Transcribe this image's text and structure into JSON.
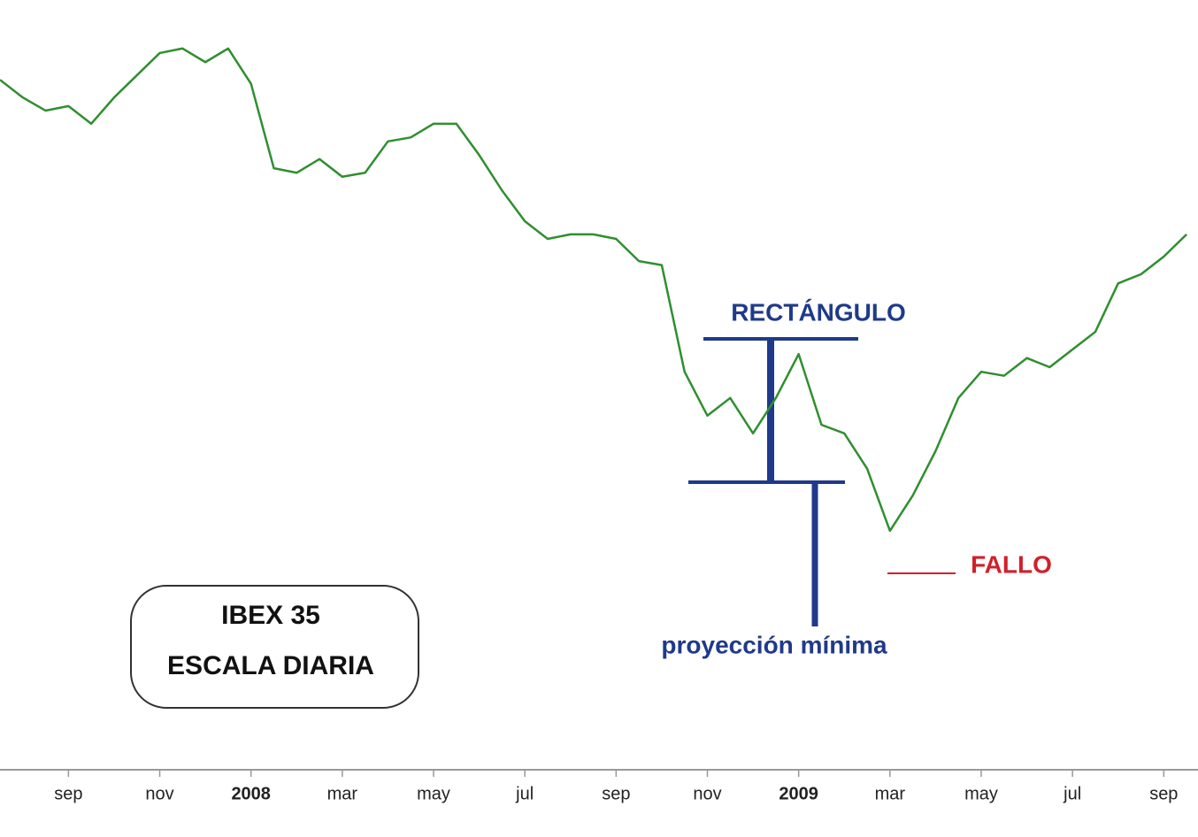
{
  "chart_data": {
    "type": "line",
    "series": [
      {
        "name": "IBEX 35",
        "color": "#2f8f2f",
        "values": [
          15400,
          15090,
          14860,
          14940,
          14630,
          15090,
          15480,
          15870,
          15950,
          15710,
          15950,
          15330,
          13850,
          13770,
          14010,
          13700,
          13770,
          14320,
          14390,
          14630,
          14630,
          14080,
          13460,
          12920,
          12610,
          12690,
          12690,
          12610,
          12220,
          12150,
          10280,
          9510,
          9820,
          9200,
          9820,
          10590,
          9350,
          9200,
          8580,
          7490,
          8110,
          8890,
          9820,
          10280,
          10210,
          10520,
          10360,
          10670,
          10980,
          11830,
          11990,
          12300,
          12690
        ]
      }
    ],
    "xlim": [
      0,
      52.5
    ],
    "ylim": [
      3300,
      16800
    ],
    "xticks": [
      {
        "value": 3,
        "label": "sep"
      },
      {
        "value": 7,
        "label": "nov"
      },
      {
        "value": 11,
        "label": "2008"
      },
      {
        "value": 15,
        "label": "mar"
      },
      {
        "value": 19,
        "label": "may"
      },
      {
        "value": 23,
        "label": "jul"
      },
      {
        "value": 27,
        "label": "sep"
      },
      {
        "value": 31,
        "label": "nov"
      },
      {
        "value": 35,
        "label": "2009"
      },
      {
        "value": 39,
        "label": "mar"
      },
      {
        "value": 43,
        "label": "may"
      },
      {
        "value": 47,
        "label": "jul"
      },
      {
        "value": 51,
        "label": "sep"
      }
    ],
    "box_text": [
      "IBEX 35",
      "ESCALA DIARIA"
    ],
    "annotations": [
      "RECTÁNGULO",
      "proyección mínima",
      "FALLO"
    ]
  }
}
